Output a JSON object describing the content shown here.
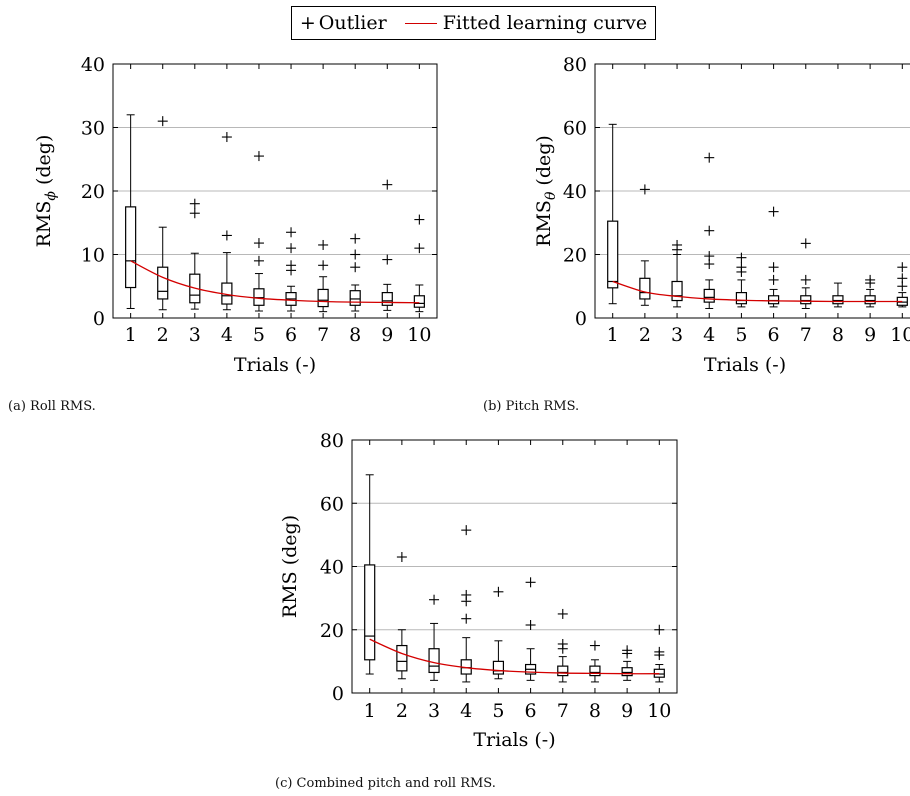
{
  "legend": {
    "outlier_symbol": "+",
    "outlier_label": "Outlier",
    "curve_label": "Fitted learning curve",
    "curve_color": "#d40000"
  },
  "chart_data": [
    {
      "type": "box",
      "caption": "(a) Roll RMS.",
      "xlabel": "Trials (-)",
      "ylabel": "RMS",
      "ylabel_subscript": "ϕ",
      "ylabel_unit": "(deg)",
      "categories": [
        "1",
        "2",
        "3",
        "4",
        "5",
        "6",
        "7",
        "8",
        "9",
        "10"
      ],
      "ylim": [
        0,
        40
      ],
      "yticks": [
        0,
        10,
        20,
        30,
        40
      ],
      "grid": "horizontal",
      "boxes": [
        {
          "min": 1.5,
          "q1": 4.8,
          "median": 9.0,
          "q3": 17.5,
          "max": 32.0
        },
        {
          "min": 1.3,
          "q1": 3.0,
          "median": 4.2,
          "q3": 8.0,
          "max": 14.3
        },
        {
          "min": 1.4,
          "q1": 2.4,
          "median": 3.6,
          "q3": 6.9,
          "max": 10.2
        },
        {
          "min": 1.3,
          "q1": 2.2,
          "median": 3.5,
          "q3": 5.5,
          "max": 10.3
        },
        {
          "min": 1.1,
          "q1": 2.0,
          "median": 3.2,
          "q3": 4.6,
          "max": 7.0
        },
        {
          "min": 1.1,
          "q1": 2.0,
          "median": 3.0,
          "q3": 4.0,
          "max": 5.0
        },
        {
          "min": 1.0,
          "q1": 1.8,
          "median": 2.8,
          "q3": 4.5,
          "max": 6.5
        },
        {
          "min": 1.1,
          "q1": 2.0,
          "median": 3.0,
          "q3": 4.3,
          "max": 5.2
        },
        {
          "min": 1.2,
          "q1": 2.0,
          "median": 2.7,
          "q3": 4.0,
          "max": 5.3
        },
        {
          "min": 1.0,
          "q1": 1.7,
          "median": 2.3,
          "q3": 3.5,
          "max": 5.2
        }
      ],
      "outliers": [
        [],
        [
          31.0
        ],
        [
          16.5,
          18.0
        ],
        [
          13.0,
          28.5
        ],
        [
          9.0,
          11.8,
          25.5
        ],
        [
          7.5,
          8.3,
          11.0,
          13.5
        ],
        [
          8.3,
          11.5
        ],
        [
          8.0,
          10.0,
          12.5
        ],
        [
          9.2,
          21.0
        ],
        [
          11.0,
          15.5
        ]
      ],
      "curve": [
        9.0,
        6.4,
        4.7,
        3.7,
        3.1,
        2.8,
        2.6,
        2.5,
        2.45,
        2.4
      ]
    },
    {
      "type": "box",
      "caption": "(b) Pitch RMS.",
      "xlabel": "Trials (-)",
      "ylabel": "RMS",
      "ylabel_subscript": "θ",
      "ylabel_unit": "(deg)",
      "categories": [
        "1",
        "2",
        "3",
        "4",
        "5",
        "6",
        "7",
        "8",
        "9",
        "10"
      ],
      "ylim": [
        0,
        80
      ],
      "yticks": [
        0,
        20,
        40,
        60,
        80
      ],
      "grid": "horizontal",
      "boxes": [
        {
          "min": 4.5,
          "q1": 9.5,
          "median": 11.5,
          "q3": 30.5,
          "max": 61.0
        },
        {
          "min": 4.0,
          "q1": 6.0,
          "median": 8.0,
          "q3": 12.5,
          "max": 18.0
        },
        {
          "min": 3.5,
          "q1": 5.5,
          "median": 7.0,
          "q3": 11.5,
          "max": 20.0
        },
        {
          "min": 3.0,
          "q1": 5.0,
          "median": 6.5,
          "q3": 9.0,
          "max": 12.0
        },
        {
          "min": 3.5,
          "q1": 4.5,
          "median": 5.5,
          "q3": 8.0,
          "max": 12.0
        },
        {
          "min": 3.5,
          "q1": 4.5,
          "median": 5.5,
          "q3": 7.0,
          "max": 9.0
        },
        {
          "min": 3.0,
          "q1": 4.5,
          "median": 5.5,
          "q3": 7.0,
          "max": 9.5
        },
        {
          "min": 3.5,
          "q1": 4.5,
          "median": 5.5,
          "q3": 7.0,
          "max": 11.0
        },
        {
          "min": 3.5,
          "q1": 4.5,
          "median": 5.5,
          "q3": 7.0,
          "max": 9.0
        },
        {
          "min": 3.5,
          "q1": 4.0,
          "median": 5.0,
          "q3": 6.5,
          "max": 8.0
        }
      ],
      "outliers": [
        [],
        [
          40.5
        ],
        [
          21.5,
          23.0
        ],
        [
          17.0,
          19.5,
          27.5,
          50.5
        ],
        [
          14.5,
          16.0,
          19.0
        ],
        [
          12.0,
          16.0,
          33.5
        ],
        [
          12.0,
          23.5
        ],
        [],
        [
          11.0,
          12.0
        ],
        [
          10.0,
          12.5,
          16.0
        ]
      ],
      "curve": [
        11.5,
        8.2,
        6.8,
        6.0,
        5.6,
        5.4,
        5.3,
        5.2,
        5.2,
        5.2
      ]
    },
    {
      "type": "box",
      "caption": "(c) Combined pitch and roll RMS.",
      "xlabel": "Trials (-)",
      "ylabel": "RMS",
      "ylabel_subscript": "",
      "ylabel_unit": "(deg)",
      "categories": [
        "1",
        "2",
        "3",
        "4",
        "5",
        "6",
        "7",
        "8",
        "9",
        "10"
      ],
      "ylim": [
        0,
        80
      ],
      "yticks": [
        0,
        20,
        40,
        60,
        80
      ],
      "grid": "horizontal",
      "boxes": [
        {
          "min": 6.0,
          "q1": 10.5,
          "median": 18.0,
          "q3": 40.5,
          "max": 69.0
        },
        {
          "min": 4.5,
          "q1": 7.0,
          "median": 10.0,
          "q3": 15.0,
          "max": 20.0
        },
        {
          "min": 4.0,
          "q1": 6.5,
          "median": 8.5,
          "q3": 14.0,
          "max": 22.0
        },
        {
          "min": 3.5,
          "q1": 6.0,
          "median": 8.0,
          "q3": 10.5,
          "max": 17.5
        },
        {
          "min": 4.5,
          "q1": 6.0,
          "median": 7.0,
          "q3": 10.0,
          "max": 16.5
        },
        {
          "min": 4.0,
          "q1": 6.0,
          "median": 7.5,
          "q3": 9.0,
          "max": 14.0
        },
        {
          "min": 3.5,
          "q1": 5.5,
          "median": 6.5,
          "q3": 8.5,
          "max": 11.5
        },
        {
          "min": 3.5,
          "q1": 5.5,
          "median": 6.5,
          "q3": 8.5,
          "max": 10.5
        },
        {
          "min": 4.0,
          "q1": 5.5,
          "median": 6.5,
          "q3": 8.0,
          "max": 10.0
        },
        {
          "min": 3.5,
          "q1": 5.0,
          "median": 6.0,
          "q3": 7.5,
          "max": 9.0
        }
      ],
      "outliers": [
        [],
        [
          43.0
        ],
        [
          29.5
        ],
        [
          23.5,
          29.0,
          31.0,
          51.5
        ],
        [
          32.0
        ],
        [
          21.5,
          35.0
        ],
        [
          14.0,
          15.5,
          25.0
        ],
        [
          15.0
        ],
        [
          12.5,
          13.5
        ],
        [
          12.0,
          13.0,
          20.0
        ]
      ],
      "curve": [
        17.0,
        12.5,
        9.6,
        8.0,
        7.1,
        6.6,
        6.3,
        6.2,
        6.1,
        6.1
      ]
    }
  ]
}
